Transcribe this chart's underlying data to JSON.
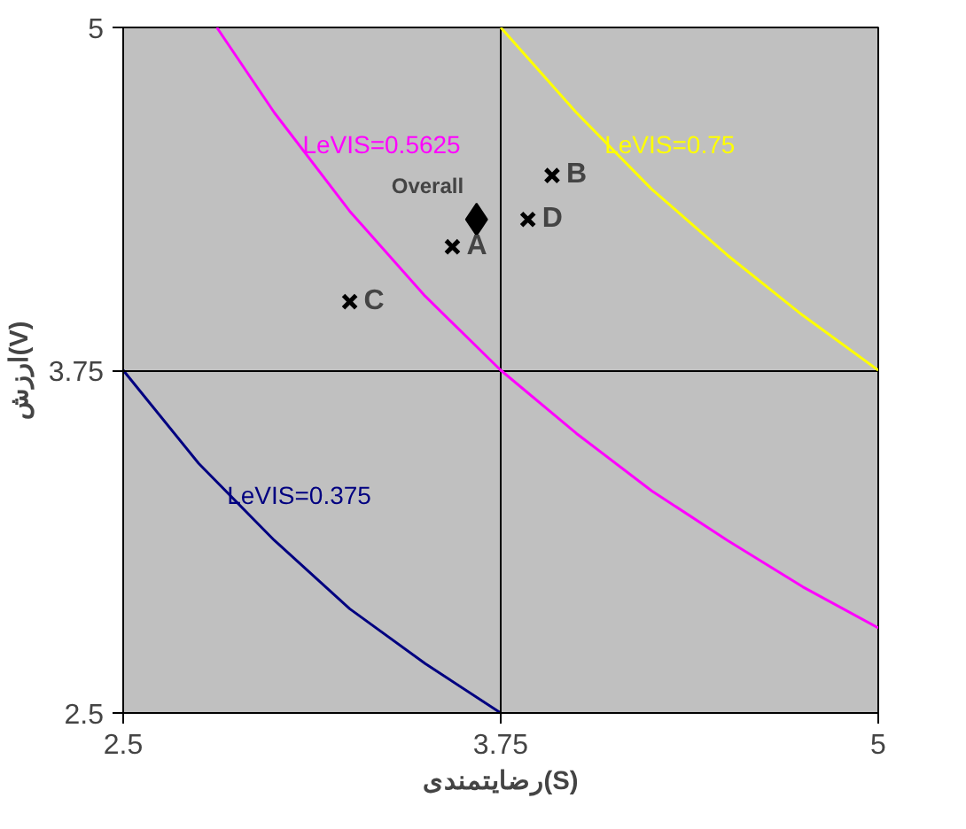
{
  "chart_data": {
    "type": "scatter",
    "xlabel": "رضایتمندی(S)",
    "ylabel": "ارزش(V)",
    "xlim": [
      2.5,
      5
    ],
    "ylim": [
      2.5,
      5
    ],
    "xticks": [
      2.5,
      3.75,
      5
    ],
    "yticks": [
      2.5,
      3.75,
      5
    ],
    "grid": true,
    "series": [
      {
        "name": "LeVIS=0.375",
        "type": "line",
        "color": "#000080",
        "x": [
          2.5,
          2.75,
          3,
          3.25,
          3.5,
          3.75
        ],
        "values": [
          3.75,
          3.41,
          3.13,
          2.88,
          2.68,
          2.5
        ]
      },
      {
        "name": "LeVIS=0.5625",
        "type": "line",
        "color": "#ff00ff",
        "x": [
          2.81,
          3,
          3.25,
          3.5,
          3.75,
          4,
          4.25,
          4.5,
          4.75,
          5
        ],
        "values": [
          5,
          4.69,
          4.33,
          4.02,
          3.75,
          3.52,
          3.31,
          3.13,
          2.96,
          2.81
        ]
      },
      {
        "name": "LeVIS=0.75",
        "type": "line",
        "color": "#ffff00",
        "x": [
          3.75,
          4,
          4.25,
          4.5,
          4.75,
          5
        ],
        "values": [
          5,
          4.69,
          4.41,
          4.17,
          3.95,
          3.75
        ]
      },
      {
        "name": "A",
        "marker": "cross",
        "color": "#000000",
        "x": [
          3.59
        ],
        "values": [
          4.2
        ]
      },
      {
        "name": "B",
        "marker": "cross",
        "color": "#000000",
        "x": [
          3.92
        ],
        "values": [
          4.46
        ]
      },
      {
        "name": "C",
        "marker": "cross",
        "color": "#000000",
        "x": [
          3.25
        ],
        "values": [
          4.0
        ]
      },
      {
        "name": "D",
        "marker": "cross",
        "color": "#000000",
        "x": [
          3.84
        ],
        "values": [
          4.3
        ]
      },
      {
        "name": "Overall",
        "marker": "diamond",
        "color": "#000000",
        "x": [
          3.67
        ],
        "values": [
          4.3
        ]
      }
    ]
  }
}
